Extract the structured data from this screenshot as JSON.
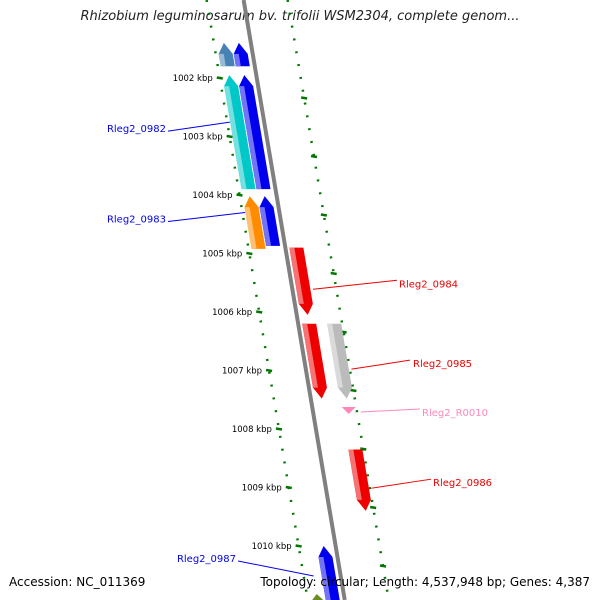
{
  "title": "Rhizobium leguminosarum bv. trifolii WSM2304, complete genom...",
  "footer": {
    "accession": "Accession: NC_011369",
    "topology": "Topology: circular; Length: 4,537,948 bp; Genes: 4,387"
  },
  "colors": {
    "backbone": "#808080",
    "ticks": "#007700",
    "forward_gene": "#0000ee",
    "reverse_gene": "#ee0000",
    "pseudo_gene": "#bbbbbb",
    "rna": "#ff88bb",
    "cyan_gene": "#00c8c8",
    "orange_gene": "#ff8c00",
    "steel_gene": "#4682b4",
    "olive_gene": "#6b8e23"
  },
  "ticks": [
    {
      "kbp": 1002,
      "label": "1002 kbp"
    },
    {
      "kbp": 1003,
      "label": "1003 kbp"
    },
    {
      "kbp": 1004,
      "label": "1004 kbp"
    },
    {
      "kbp": 1005,
      "label": "1005 kbp"
    },
    {
      "kbp": 1006,
      "label": "1006 kbp"
    },
    {
      "kbp": 1007,
      "label": "1007 kbp"
    },
    {
      "kbp": 1008,
      "label": "1008 kbp"
    },
    {
      "kbp": 1009,
      "label": "1009 kbp"
    },
    {
      "kbp": 1010,
      "label": "1010 kbp"
    }
  ],
  "features": [
    {
      "name": "",
      "start": 1001.4,
      "end": 1001.8,
      "strand": "-",
      "track": "outer",
      "color": "#4682b4"
    },
    {
      "name": "",
      "start": 1001.4,
      "end": 1001.8,
      "strand": "-",
      "track": "inner",
      "color": "#0000ee"
    },
    {
      "name": "Rleg2_0982",
      "start": 1001.95,
      "end": 1003.9,
      "strand": "-",
      "track": "outer",
      "color": "#00c8c8",
      "label_side": "left"
    },
    {
      "name": "",
      "start": 1001.95,
      "end": 1003.9,
      "strand": "-",
      "track": "inner",
      "color": "#0000ee"
    },
    {
      "name": "Rleg2_0983",
      "start": 1004.02,
      "end": 1004.92,
      "strand": "-",
      "track": "outer",
      "color": "#ff8c00",
      "label_side": "left"
    },
    {
      "name": "",
      "start": 1004.02,
      "end": 1004.87,
      "strand": "-",
      "track": "inner",
      "color": "#0000ee"
    },
    {
      "name": "Rleg2_0984",
      "start": 1004.9,
      "end": 1006.05,
      "strand": "+",
      "track": "inner",
      "color": "#ee0000",
      "label_side": "right"
    },
    {
      "name": "",
      "start": 1006.2,
      "end": 1007.48,
      "strand": "+",
      "track": "inner",
      "color": "#ee0000"
    },
    {
      "name": "Rleg2_0985",
      "start": 1006.2,
      "end": 1007.48,
      "strand": "+",
      "track": "outer",
      "color": "#bbbbbb",
      "label_side": "right"
    },
    {
      "name": "Rleg2_R0010",
      "start": 1007.6,
      "end": 1007.75,
      "strand": "+",
      "track": "outer",
      "color": "#ff88bb",
      "label_side": "right",
      "label_color": "#ff88bb"
    },
    {
      "name": "Rleg2_0986",
      "start": 1008.35,
      "end": 1009.4,
      "strand": "+",
      "track": "outer",
      "color": "#ee0000",
      "label_side": "right"
    },
    {
      "name": "Rleg2_0987",
      "start": 1010.0,
      "end": 1010.95,
      "strand": "-",
      "track": "inner",
      "color": "#0000ee",
      "label_side": "left"
    },
    {
      "name": "",
      "start": 1010.82,
      "end": 1010.95,
      "strand": "-",
      "track": "outer",
      "color": "#6b8e23"
    }
  ]
}
